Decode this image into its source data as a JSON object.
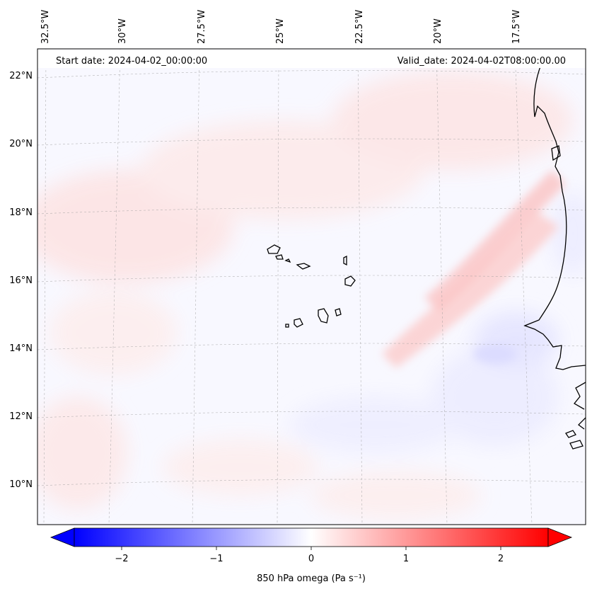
{
  "header": {
    "start_date": "Start date: 2024-04-02_00:00:00",
    "valid_date": "Valid_date: 2024-04-02T08:00:00.00"
  },
  "axes": {
    "lon_labels": [
      "32.5°W",
      "30°W",
      "27.5°W",
      "25°W",
      "22.5°W",
      "20°W",
      "17.5°W"
    ],
    "lat_labels": [
      "22°N",
      "20°N",
      "18°N",
      "16°N",
      "14°N",
      "12°N",
      "10°N"
    ]
  },
  "colorbar": {
    "label": "850 hPa omega (Pa s⁻¹)",
    "ticks": [
      "−2",
      "−1",
      "0",
      "1",
      "2"
    ],
    "tick_values": [
      -2,
      -1,
      0,
      1,
      2
    ],
    "range": [
      -2.5,
      2.5
    ],
    "colormap": "bwr",
    "negative_color": "#0000ff",
    "zero_color": "#ffffff",
    "positive_color": "#ff0000"
  },
  "map": {
    "field": "850 hPa omega",
    "features": [
      "Cape Verde islands",
      "West African coastline"
    ]
  }
}
